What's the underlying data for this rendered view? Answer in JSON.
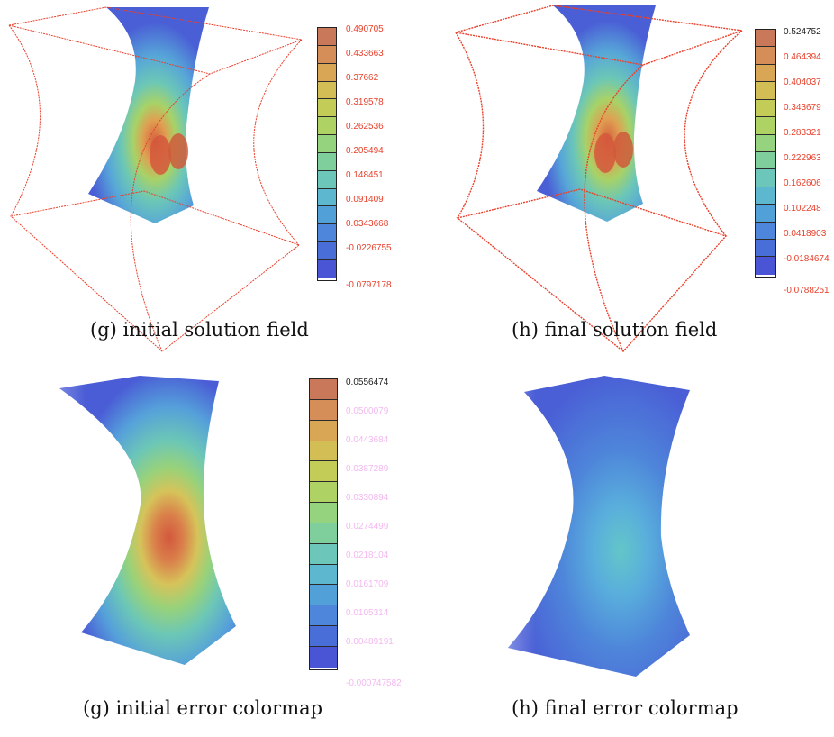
{
  "figures": [
    {
      "id": "g-top",
      "caption": "(g) initial solution field",
      "ticks": [
        "0.490705",
        "0.433663",
        "0.37662",
        "0.319578",
        "0.262536",
        "0.205494",
        "0.148451",
        "0.091409",
        "0.0343668",
        "-0.0226755",
        "-0.0797178"
      ],
      "tick_color": "#e8412c",
      "top_tick_color": "#e8412c"
    },
    {
      "id": "h-top",
      "caption": "(h) final solution field",
      "ticks": [
        "0.524752",
        "0.464394",
        "0.404037",
        "0.343679",
        "0.283321",
        "0.222963",
        "0.162606",
        "0.102248",
        "0.0418903",
        "-0.0184674",
        "-0.0788251"
      ],
      "tick_color": "#e8412c",
      "top_tick_color": "#222222"
    },
    {
      "id": "g-bottom",
      "caption": "(g) initial error colormap",
      "ticks": [
        "0.0556474",
        "0.0500079",
        "0.0443684",
        "0.0387289",
        "0.0330894",
        "0.0274499",
        "0.0218104",
        "0.0161709",
        "0.0105314",
        "0.00489191",
        "-0.000747582"
      ],
      "tick_color": "#f3b8f0",
      "top_tick_color": "#222222"
    },
    {
      "id": "h-bottom",
      "caption": "(h) final error colormap"
    }
  ],
  "colors": {
    "bound_box": "#e8412c",
    "ramp": [
      "#4a55d6",
      "#4a6ed8",
      "#4d86da",
      "#52a0d8",
      "#5db8cf",
      "#6cc6b9",
      "#7fcf9c",
      "#96d37e",
      "#aed263",
      "#c4cc58",
      "#d3bd55",
      "#d9a656",
      "#d58e58",
      "#c9785a"
    ]
  }
}
